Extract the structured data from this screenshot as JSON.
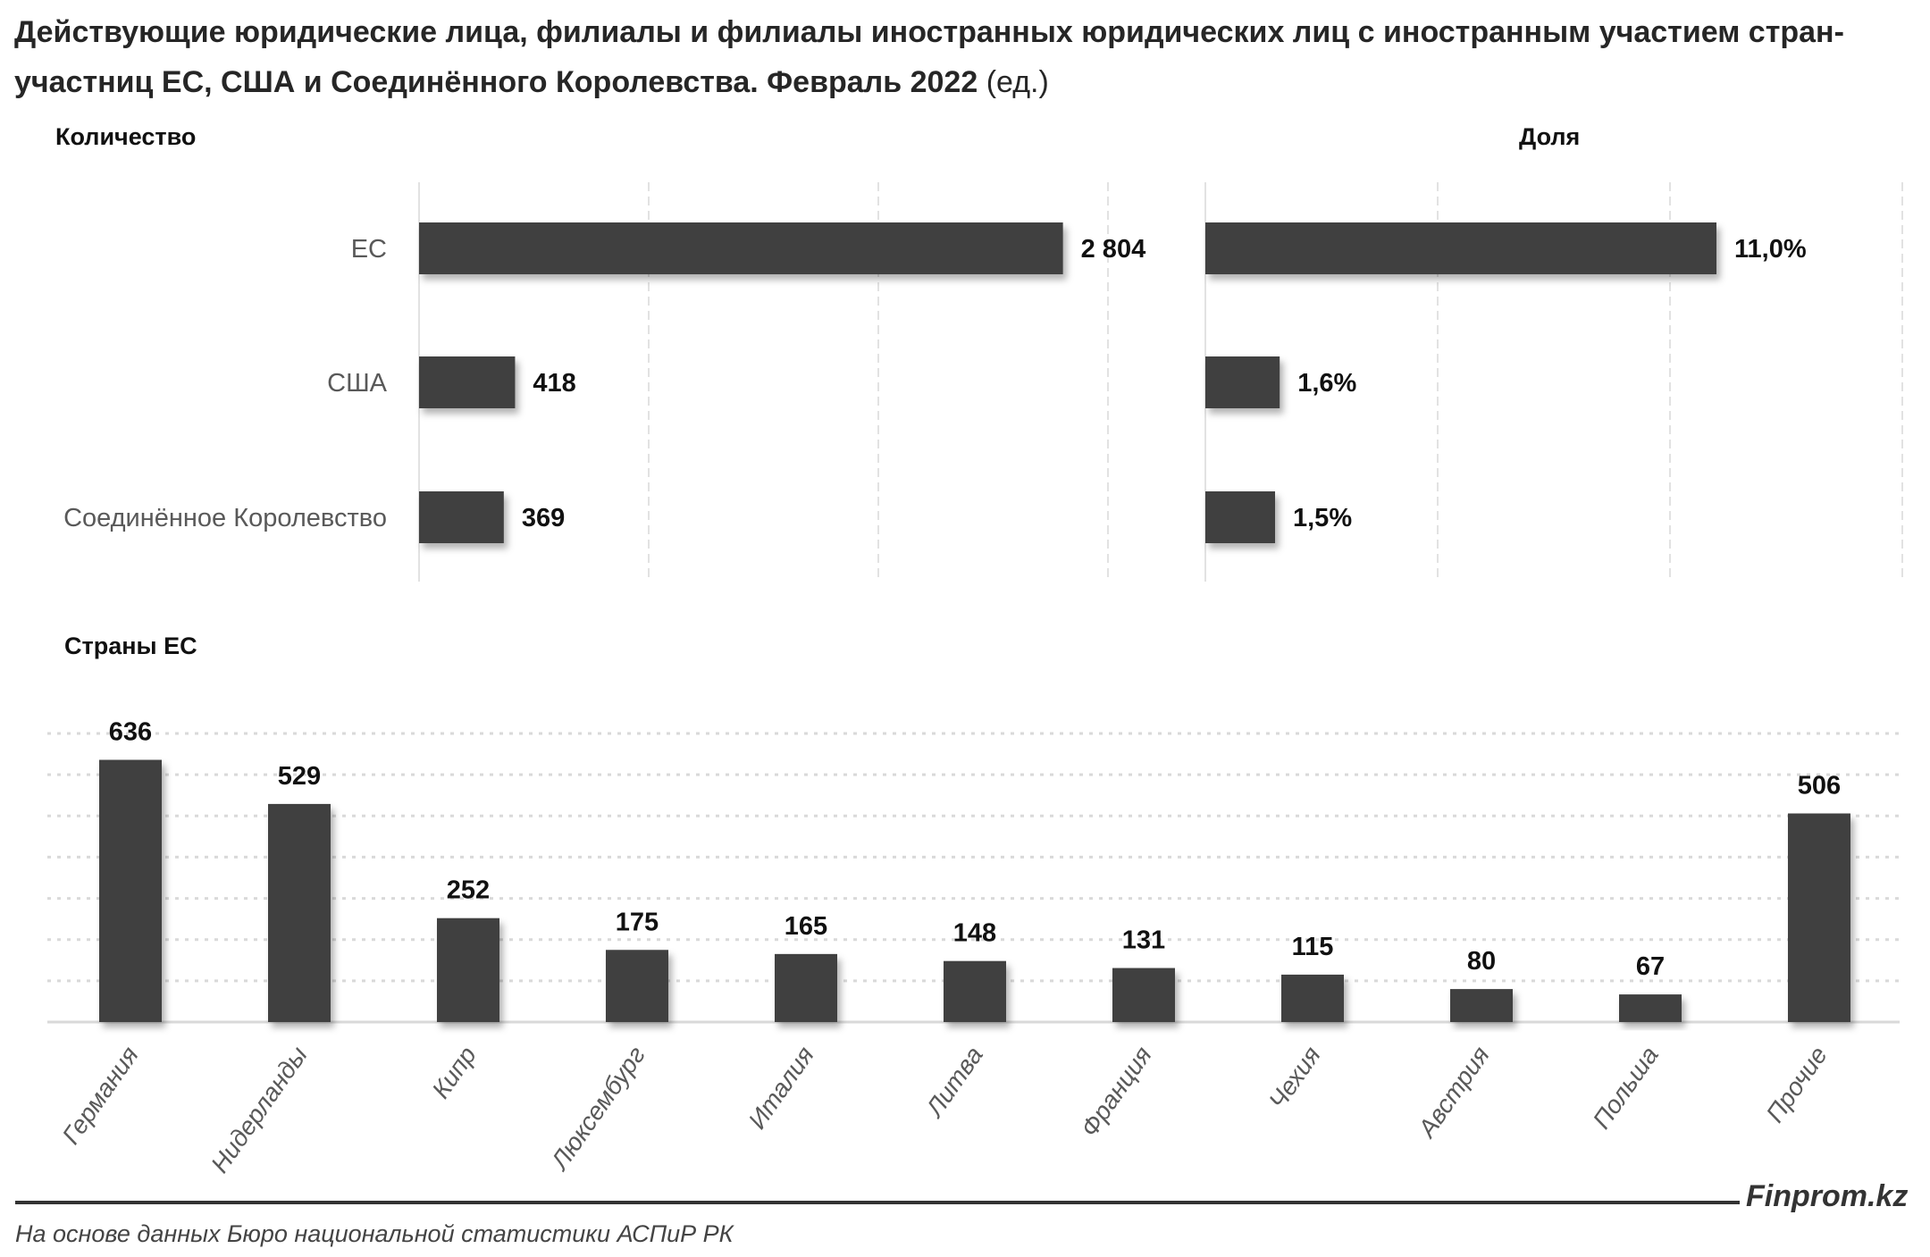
{
  "title": "Действующие юридические лица, филиалы и филиалы иностранных юридических лиц с иностранным участием стран-участниц ЕС, США и Соединённого Королевства. Февраль 2022",
  "title_unit": "(ед.)",
  "brand": "Finprom.kz",
  "source": "На основе данных Бюро национальной статистики АСПиР РК",
  "colors": {
    "bar": "#404040",
    "grid": "#d9d9d9",
    "label": "#595959"
  },
  "chart_data": [
    {
      "type": "bar",
      "orientation": "horizontal",
      "title": "Количество",
      "categories": [
        "ЕС",
        "США",
        "Соединённое Королевство"
      ],
      "values": [
        2804,
        418,
        369
      ],
      "data_labels": [
        "2 804",
        "418",
        "369"
      ],
      "xlim": [
        0,
        3000
      ],
      "grid": true
    },
    {
      "type": "bar",
      "orientation": "horizontal",
      "title": "Доля",
      "categories": [
        "ЕС",
        "США",
        "Соединённое Королевство"
      ],
      "values": [
        11.0,
        1.6,
        1.5
      ],
      "data_labels": [
        "11,0%",
        "1,6%",
        "1,5%"
      ],
      "xlim": [
        0,
        15
      ],
      "grid": true
    },
    {
      "type": "bar",
      "orientation": "vertical",
      "title": "Страны ЕС",
      "categories": [
        "Германия",
        "Нидерланды",
        "Кипр",
        "Люксембург",
        "Италия",
        "Литва",
        "Франция",
        "Чехия",
        "Австрия",
        "Польша",
        "Прочие"
      ],
      "values": [
        636,
        529,
        252,
        175,
        165,
        148,
        131,
        115,
        80,
        67,
        506
      ],
      "ylim": [
        0,
        700
      ],
      "grid": true
    }
  ]
}
